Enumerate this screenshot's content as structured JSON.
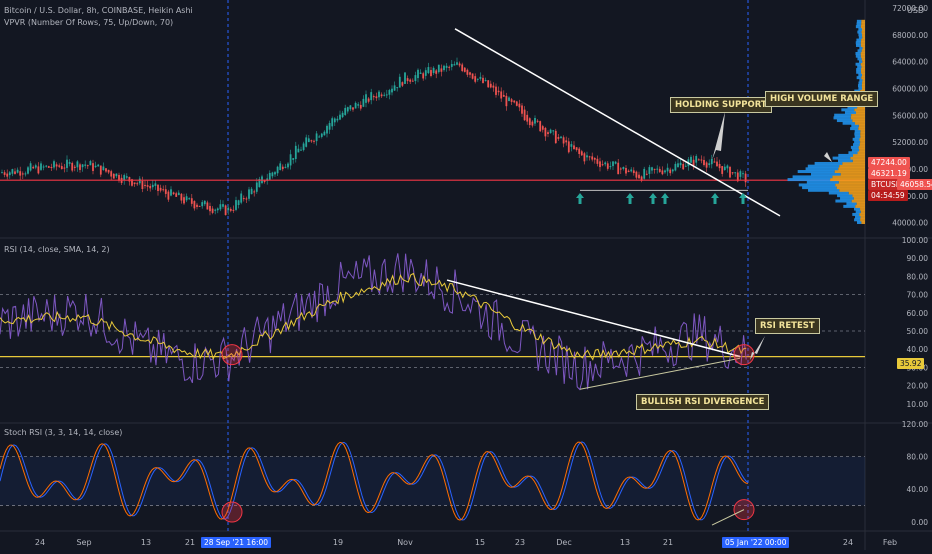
{
  "title": "Bitcoin / U.S. Dollar, 8h, COINBASE, Heikin Ashi",
  "vpvr_label": "VPVR (Number Of Rows, 75, Up/Down, 70)",
  "rsi_label": "RSI (14, close, SMA, 14, 2)",
  "stoch_label": "Stoch RSI (3, 3, 14, 14, close)",
  "currency": "USD",
  "colors": {
    "background": "#131722",
    "bull": "#26a69a",
    "bear": "#ef5350",
    "rsi": "#7e57c2",
    "rsi_ma": "#e8c93a",
    "stoch_k": "#2962ff",
    "stoch_d": "#ff6d00",
    "annotation": "#ffffff",
    "volume_up": "#2196f3",
    "volume_down": "#f7a21b"
  },
  "annotations": {
    "holding_support": "HOLDING SUPPORT",
    "high_volume_range": "HIGH VOLUME RANGE",
    "rsi_retest": "RSI RETEST",
    "bullish_divergence": "BULLISH RSI DIVERGENCE"
  },
  "price_tags": {
    "upper": "47244.00",
    "current": "46321.19",
    "symbol": "BTCUSD",
    "lower": "46058.54",
    "countdown": "04:54:59"
  },
  "rsi_value_tag": "35.92",
  "x_axis": {
    "ticks": [
      "24",
      "Sep",
      "13",
      "21",
      "28 Sep '21",
      "16:00",
      "19",
      "Nov",
      "15",
      "23",
      "Dec",
      "13",
      "21",
      "05 Jan '22",
      "00:00",
      "24",
      "Feb"
    ],
    "highlight_start": "28 Sep '21  16:00",
    "highlight_end": "05 Jan '22  00:00"
  },
  "chart_data": [
    {
      "type": "line",
      "panel": "price",
      "ylabel": "USD",
      "ylim": [
        38000,
        72000
      ],
      "y_ticks": [
        "72000.00",
        "68000.00",
        "64000.00",
        "60000.00",
        "56000.00",
        "52000.00",
        "48000.00",
        "44000.00",
        "40000.00"
      ],
      "series": [
        {
          "x": [
            "24",
            "Sep",
            "13",
            "21",
            "28 Sep '21",
            "19",
            "Nov",
            "15",
            "23",
            "Dec",
            "13",
            "21",
            "05 Jan '22"
          ],
          "values": [
            47500,
            48800,
            45500,
            43000,
            41800,
            56000,
            61500,
            63500,
            56500,
            50000,
            47000,
            49500,
            46300
          ]
        }
      ],
      "horizontal_line": 46321.19,
      "trendline": {
        "from": [
          "15",
          68900
        ],
        "to": [
          "05 Jan '22",
          41000
        ]
      },
      "support_line": 46000
    },
    {
      "type": "line",
      "panel": "rsi",
      "ylim": [
        0,
        100
      ],
      "y_ticks": [
        "100.00",
        "90.00",
        "80.00",
        "70.00",
        "60.00",
        "50.00",
        "40.00",
        "30.00",
        "20.00",
        "10.00"
      ],
      "reference_lines": [
        70,
        50,
        30,
        35.92
      ],
      "series": [
        {
          "name": "RSI",
          "values": [
            55,
            62,
            40,
            33,
            35,
            75,
            84,
            70,
            45,
            30,
            38,
            48,
            36
          ]
        },
        {
          "name": "RSI SMA",
          "values": [
            56,
            58,
            45,
            38,
            36,
            68,
            80,
            72,
            52,
            36,
            40,
            45,
            38
          ]
        }
      ],
      "trendline": {
        "from": [
          "15",
          78
        ],
        "to": [
          "05 Jan '22",
          36
        ]
      },
      "divergence_line": {
        "from": [
          "Dec",
          18
        ],
        "to": [
          "05 Jan '22",
          35
        ]
      }
    },
    {
      "type": "line",
      "panel": "stoch_rsi",
      "ylim": [
        -10,
        120
      ],
      "y_ticks": [
        "120.00",
        "80.00",
        "40.00",
        "0.00"
      ],
      "reference_lines": [
        80,
        20
      ],
      "series": [
        {
          "name": "K",
          "values": [
            90,
            10,
            85,
            5,
            20,
            95,
            15,
            90,
            10,
            85,
            20,
            95,
            20
          ]
        },
        {
          "name": "D",
          "values": [
            85,
            20,
            80,
            12,
            25,
            88,
            22,
            85,
            18,
            80,
            25,
            88,
            22
          ]
        }
      ]
    }
  ]
}
